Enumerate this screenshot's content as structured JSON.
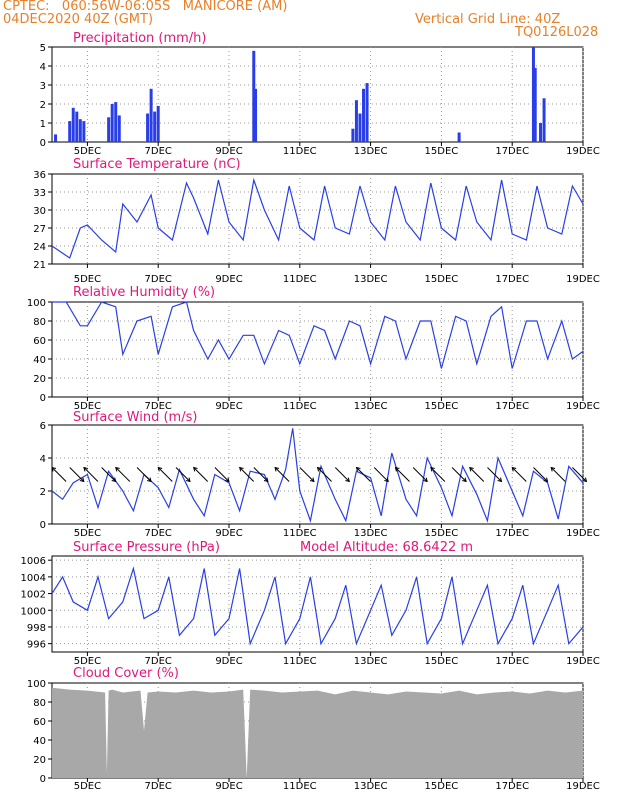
{
  "header": {
    "line1": "CPTEC:   060:56W-06:05S   MANICORE (AM)",
    "line2": "04DEC2020 40Z (GMT)",
    "grid_note": "Vertical Grid Line: 40Z",
    "code": "TQ0126L028"
  },
  "colors": {
    "header": "#e8802a",
    "title": "#e0187a",
    "line": "#2a3ee8",
    "cloud": "#a8a8a8"
  },
  "x_ticks": [
    "5DEC",
    "7DEC",
    "9DEC",
    "11DEC",
    "13DEC",
    "15DEC",
    "17DEC",
    "19DEC"
  ],
  "x_tick_days": [
    5,
    7,
    9,
    11,
    13,
    15,
    17,
    19
  ],
  "x_range_days": [
    4.0,
    19.0
  ],
  "chart_data": [
    {
      "type": "bar",
      "title": "Precipitation (mm/h)",
      "ylim": [
        0,
        5
      ],
      "yticks": [
        0,
        1,
        2,
        3,
        4,
        5
      ],
      "x": [
        4.1,
        4.5,
        4.6,
        4.7,
        4.8,
        4.9,
        5.6,
        5.7,
        5.8,
        5.9,
        6.7,
        6.8,
        6.9,
        7.0,
        9.7,
        9.75,
        12.5,
        12.6,
        12.7,
        12.8,
        12.9,
        15.5,
        17.6,
        17.65,
        17.8,
        17.9
      ],
      "values": [
        0.4,
        1.1,
        1.8,
        1.6,
        1.2,
        1.1,
        1.3,
        2.0,
        2.1,
        1.4,
        1.5,
        2.8,
        1.6,
        1.9,
        4.8,
        2.8,
        0.7,
        2.2,
        1.5,
        2.8,
        3.1,
        0.5,
        5.0,
        3.9,
        1.0,
        2.3
      ]
    },
    {
      "type": "line",
      "title": "Surface Temperature (nC)",
      "ylim": [
        21,
        36
      ],
      "yticks": [
        21,
        24,
        27,
        30,
        33,
        36
      ],
      "x": [
        4.0,
        4.5,
        4.8,
        5.0,
        5.4,
        5.8,
        6.0,
        6.4,
        6.8,
        7.0,
        7.4,
        7.8,
        8.0,
        8.4,
        8.7,
        9.0,
        9.4,
        9.7,
        10.0,
        10.4,
        10.7,
        11.0,
        11.4,
        11.7,
        12.0,
        12.4,
        12.7,
        13.0,
        13.4,
        13.7,
        14.0,
        14.4,
        14.7,
        15.0,
        15.4,
        15.7,
        16.0,
        16.4,
        16.7,
        17.0,
        17.4,
        17.7,
        18.0,
        18.4,
        18.7,
        19.0
      ],
      "values": [
        24,
        22,
        27,
        27.5,
        25,
        23,
        31,
        28,
        32.5,
        27,
        25,
        34.5,
        32,
        26,
        35,
        28,
        25,
        35,
        30,
        25,
        34,
        27,
        25,
        34,
        27,
        26,
        34,
        28,
        25,
        34,
        28,
        25,
        34.5,
        27,
        25,
        34,
        28,
        25,
        35,
        26,
        25,
        34,
        27,
        26,
        34,
        31
      ]
    },
    {
      "type": "line",
      "title": "Relative Humidity (%)",
      "ylim": [
        0,
        100
      ],
      "yticks": [
        0,
        20,
        40,
        60,
        80,
        100
      ],
      "x": [
        4.0,
        4.4,
        4.8,
        5.0,
        5.4,
        5.8,
        6.0,
        6.4,
        6.8,
        7.0,
        7.4,
        7.8,
        8.0,
        8.4,
        8.7,
        9.0,
        9.4,
        9.7,
        10.0,
        10.4,
        10.7,
        11.0,
        11.4,
        11.7,
        12.0,
        12.4,
        12.7,
        13.0,
        13.4,
        13.7,
        14.0,
        14.4,
        14.7,
        15.0,
        15.4,
        15.7,
        16.0,
        16.4,
        16.7,
        17.0,
        17.4,
        17.7,
        18.0,
        18.4,
        18.7,
        19.0
      ],
      "values": [
        100,
        100,
        75,
        75,
        100,
        95,
        45,
        80,
        85,
        45,
        95,
        100,
        70,
        40,
        60,
        40,
        65,
        65,
        35,
        70,
        65,
        35,
        75,
        70,
        40,
        80,
        75,
        35,
        85,
        80,
        40,
        80,
        80,
        30,
        85,
        80,
        35,
        85,
        95,
        30,
        80,
        80,
        40,
        80,
        40,
        48
      ]
    },
    {
      "type": "line",
      "title": "Surface Wind (m/s)",
      "ylim": [
        0,
        6
      ],
      "yticks": [
        0,
        2,
        4,
        6
      ],
      "x": [
        4.0,
        4.3,
        4.6,
        5.0,
        5.3,
        5.6,
        6.0,
        6.3,
        6.6,
        7.0,
        7.3,
        7.6,
        8.0,
        8.3,
        8.6,
        9.0,
        9.3,
        9.6,
        10.0,
        10.3,
        10.6,
        10.8,
        11.0,
        11.3,
        11.6,
        12.0,
        12.3,
        12.6,
        13.0,
        13.3,
        13.6,
        14.0,
        14.3,
        14.6,
        15.0,
        15.3,
        15.6,
        16.0,
        16.3,
        16.6,
        17.0,
        17.3,
        17.6,
        18.0,
        18.3,
        18.6,
        19.0
      ],
      "values": [
        2,
        1.5,
        2.5,
        3,
        1,
        3.2,
        2,
        0.8,
        3,
        2.2,
        1,
        3.3,
        1.5,
        0.5,
        3,
        2.5,
        0.8,
        3.2,
        3,
        1.5,
        3.3,
        5.8,
        2,
        0.2,
        3.5,
        1.5,
        0.2,
        3.2,
        2.8,
        0.5,
        4.3,
        1.5,
        0.5,
        4,
        2.2,
        0.5,
        3.5,
        1.8,
        0.2,
        4,
        2,
        0.5,
        3.2,
        2.5,
        0.3,
        3.5,
        2.5
      ],
      "arrows": {
        "x": [
          4.2,
          4.7,
          5.1,
          5.6,
          6.0,
          6.6,
          7.2,
          7.7,
          8.2,
          8.8,
          9.5,
          9.9,
          10.5,
          11.2,
          11.7,
          12.2,
          12.8,
          13.3,
          13.9,
          14.4,
          14.9,
          15.5,
          16.0,
          16.5,
          17.2,
          17.8,
          18.3,
          18.9
        ],
        "u": [
          -1,
          1,
          -1,
          1,
          -1,
          1,
          -1,
          1,
          -1,
          1,
          -1,
          1,
          -1,
          1,
          -1,
          1,
          -1,
          1,
          -1,
          1,
          -1,
          1,
          -1,
          1,
          -1,
          1,
          -1,
          1
        ],
        "v": [
          1,
          -1,
          1,
          -1,
          1,
          -1,
          1,
          -1,
          1,
          -1,
          1,
          -1,
          1,
          -1,
          1,
          -1,
          1,
          -1,
          1,
          -1,
          1,
          -1,
          1,
          -1,
          1,
          -1,
          1,
          -1
        ]
      }
    },
    {
      "type": "line",
      "title": "Surface Pressure (hPa)",
      "annotation": "Model Altitude: 68.6422 m",
      "ylim": [
        995,
        1006.5
      ],
      "yticks": [
        996,
        998,
        1000,
        1002,
        1004,
        1006
      ],
      "x": [
        4.0,
        4.3,
        4.6,
        5.0,
        5.3,
        5.6,
        6.0,
        6.3,
        6.6,
        7.0,
        7.3,
        7.6,
        8.0,
        8.3,
        8.6,
        9.0,
        9.3,
        9.6,
        10.0,
        10.3,
        10.6,
        11.0,
        11.3,
        11.6,
        12.0,
        12.3,
        12.6,
        13.0,
        13.3,
        13.6,
        14.0,
        14.3,
        14.6,
        15.0,
        15.3,
        15.6,
        16.0,
        16.3,
        16.6,
        17.0,
        17.3,
        17.6,
        18.0,
        18.3,
        18.6,
        19.0
      ],
      "values": [
        1002,
        1004,
        1001,
        1000,
        1004,
        999,
        1001,
        1005,
        999,
        1000,
        1004,
        997,
        999,
        1005,
        997,
        999,
        1005,
        996,
        1000,
        1004,
        996,
        999,
        1004,
        996,
        999,
        1003,
        996,
        1000,
        1003,
        997,
        1000,
        1004,
        996,
        999,
        1004,
        996,
        1000,
        1003,
        996,
        999,
        1003,
        996,
        1000,
        1003,
        996,
        998
      ]
    },
    {
      "type": "area",
      "title": "Cloud Cover (%)",
      "ylim": [
        0,
        100
      ],
      "yticks": [
        0,
        20,
        40,
        60,
        80,
        100
      ],
      "x": [
        4.0,
        4.5,
        5.0,
        5.5,
        5.55,
        5.6,
        5.7,
        6.0,
        6.5,
        6.6,
        6.7,
        7.0,
        7.5,
        8.0,
        8.5,
        9.0,
        9.4,
        9.5,
        9.6,
        10.0,
        10.5,
        11.0,
        11.5,
        12.0,
        12.5,
        13.0,
        13.5,
        14.0,
        14.5,
        15.0,
        15.5,
        16.0,
        16.5,
        17.0,
        17.5,
        18.0,
        18.5,
        19.0
      ],
      "values": [
        95,
        93,
        92,
        90,
        5,
        92,
        93,
        90,
        92,
        50,
        90,
        91,
        90,
        92,
        90,
        91,
        93,
        0,
        93,
        92,
        90,
        91,
        92,
        88,
        92,
        90,
        88,
        91,
        90,
        89,
        92,
        88,
        90,
        91,
        89,
        92,
        90,
        92
      ]
    }
  ]
}
